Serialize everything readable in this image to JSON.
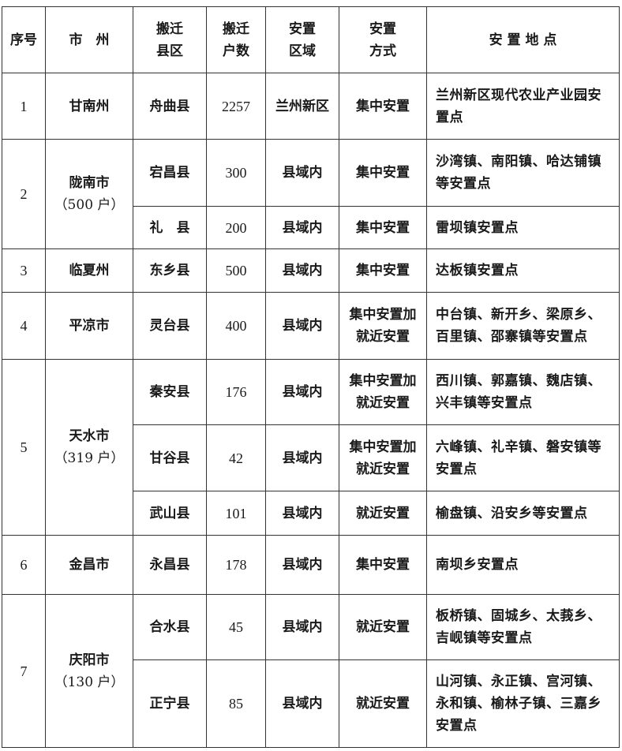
{
  "headers": [
    "序号",
    "市　州",
    "搬迁\n县区",
    "搬迁\n户数",
    "安置\n区域",
    "安置\n方式",
    "安 置 地 点"
  ],
  "groups": [
    {
      "no": "1",
      "city": "甘南州",
      "city_sub": "",
      "rows": [
        {
          "county": "舟曲县",
          "households": "2257",
          "area": "兰州新区",
          "method": "集中安置",
          "place": "兰州新区现代农业产业园安置点"
        }
      ]
    },
    {
      "no": "2",
      "city": "陇南市",
      "city_sub": "（500 户）",
      "rows": [
        {
          "county": "宕昌县",
          "households": "300",
          "area": "县域内",
          "method": "集中安置",
          "place": "沙湾镇、南阳镇、哈达铺镇等安置点"
        },
        {
          "county": "礼　县",
          "households": "200",
          "area": "县域内",
          "method": "集中安置",
          "place": "雷坝镇安置点"
        }
      ]
    },
    {
      "no": "3",
      "city": "临夏州",
      "city_sub": "",
      "rows": [
        {
          "county": "东乡县",
          "households": "500",
          "area": "县域内",
          "method": "集中安置",
          "place": "达板镇安置点"
        }
      ]
    },
    {
      "no": "4",
      "city": "平凉市",
      "city_sub": "",
      "rows": [
        {
          "county": "灵台县",
          "households": "400",
          "area": "县域内",
          "method": "集中安置加就近安置",
          "place": "中台镇、新开乡、梁原乡、百里镇、邵寨镇等安置点"
        }
      ]
    },
    {
      "no": "5",
      "city": "天水市",
      "city_sub": "（319 户）",
      "rows": [
        {
          "county": "秦安县",
          "households": "176",
          "area": "县域内",
          "method": "集中安置加就近安置",
          "place": "西川镇、郭嘉镇、魏店镇、兴丰镇等安置点"
        },
        {
          "county": "甘谷县",
          "households": "42",
          "area": "县域内",
          "method": "集中安置加就近安置",
          "place": "六峰镇、礼辛镇、磐安镇等安置点"
        },
        {
          "county": "武山县",
          "households": "101",
          "area": "县域内",
          "method": "就近安置",
          "place": "榆盘镇、沿安乡等安置点"
        }
      ]
    },
    {
      "no": "6",
      "city": "金昌市",
      "city_sub": "",
      "rows": [
        {
          "county": "永昌县",
          "households": "178",
          "area": "县域内",
          "method": "集中安置",
          "place": "南坝乡安置点"
        }
      ]
    },
    {
      "no": "7",
      "city": "庆阳市",
      "city_sub": "（130 户）",
      "rows": [
        {
          "county": "合水县",
          "households": "45",
          "area": "县域内",
          "method": "就近安置",
          "place": "板桥镇、固城乡、太莪乡、吉岘镇等安置点"
        },
        {
          "county": "正宁县",
          "households": "85",
          "area": "县域内",
          "method": "就近安置",
          "place": "山河镇、永正镇、宫河镇、永和镇、榆林子镇、三嘉乡安置点"
        }
      ]
    }
  ]
}
